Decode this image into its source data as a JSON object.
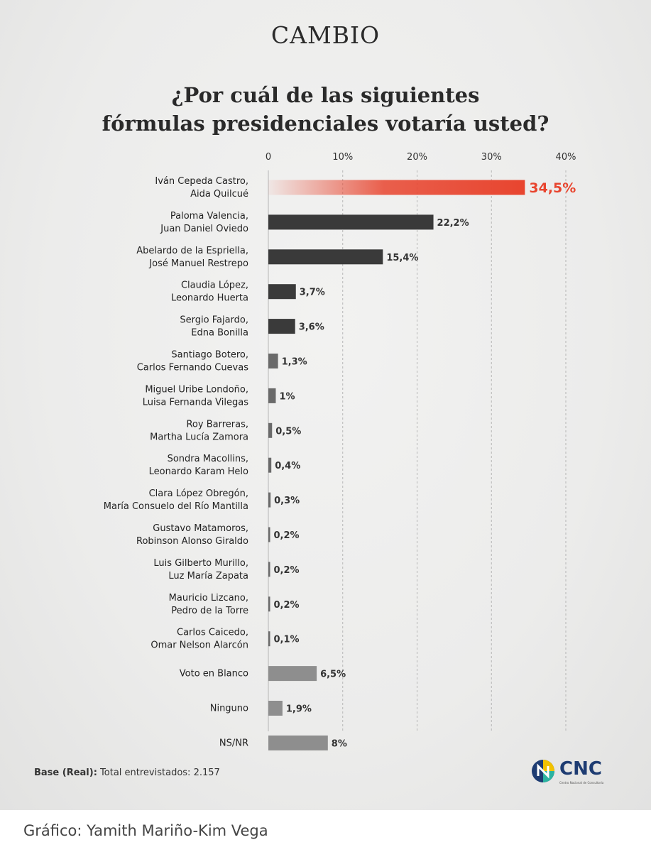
{
  "header": {
    "brand": "CAMBIO",
    "title_line1": "¿Por cuál de las siguientes",
    "title_line2": "fórmulas presidenciales votaría usted?"
  },
  "chart_data": {
    "type": "bar",
    "orientation": "horizontal",
    "title": "¿Por cuál de las siguientes fórmulas presidenciales votaría usted?",
    "xlim": [
      0,
      40
    ],
    "ticks": [
      "0",
      "10%",
      "20%",
      "30%",
      "40%"
    ],
    "grid": true,
    "categories": [
      [
        "Iván Cepeda Castro,",
        "Aida Quilcué"
      ],
      [
        "Paloma Valencia,",
        "Juan Daniel Oviedo"
      ],
      [
        "Abelardo de la Espriella,",
        "José Manuel Restrepo"
      ],
      [
        "Claudia López,",
        "Leonardo Huerta"
      ],
      [
        "Sergio Fajardo,",
        "Edna Bonilla"
      ],
      [
        "Santiago Botero,",
        "Carlos Fernando Cuevas"
      ],
      [
        "Miguel Uribe Londoño,",
        "Luisa Fernanda Vilegas"
      ],
      [
        "Roy Barreras,",
        "Martha Lucía Zamora"
      ],
      [
        "Sondra Macollins,",
        "Leonardo Karam Helo"
      ],
      [
        "Clara López Obregón,",
        "María Consuelo del Río Mantilla"
      ],
      [
        "Gustavo Matamoros,",
        "Robinson Alonso Giraldo"
      ],
      [
        "Luis Gilberto Murillo,",
        "Luz María Zapata"
      ],
      [
        "Mauricio Lizcano,",
        "Pedro de la Torre"
      ],
      [
        "Carlos Caicedo,",
        "Omar Nelson Alarcón"
      ],
      [
        "Voto en Blanco"
      ],
      [
        "Ninguno"
      ],
      [
        "NS/NR"
      ]
    ],
    "values": [
      34.5,
      22.2,
      15.4,
      3.7,
      3.6,
      1.3,
      1,
      0.5,
      0.4,
      0.3,
      0.2,
      0.2,
      0.2,
      0.1,
      6.5,
      1.9,
      8
    ],
    "labels": [
      "34,5%",
      "22,2%",
      "15,4%",
      "3,7%",
      "3,6%",
      "1,3%",
      "1%",
      "0,5%",
      "0,4%",
      "0,3%",
      "0,2%",
      "0,2%",
      "0,2%",
      "0,1%",
      "6,5%",
      "1,9%",
      "8%"
    ],
    "highlight_index": 0,
    "colors": {
      "highlight": "#e8452f",
      "dark": "#3a3a3a",
      "light": "#8e8e8e",
      "grid": "#b5b5b5"
    }
  },
  "footer": {
    "base_label": "Base (Real):",
    "base_text": "Total entrevistados: 2.157",
    "logo_text": "CNC",
    "logo_sub": "Centro Nacional de Consultoría",
    "credit": "Gráfico: Yamith Mariño-Kim Vega"
  }
}
